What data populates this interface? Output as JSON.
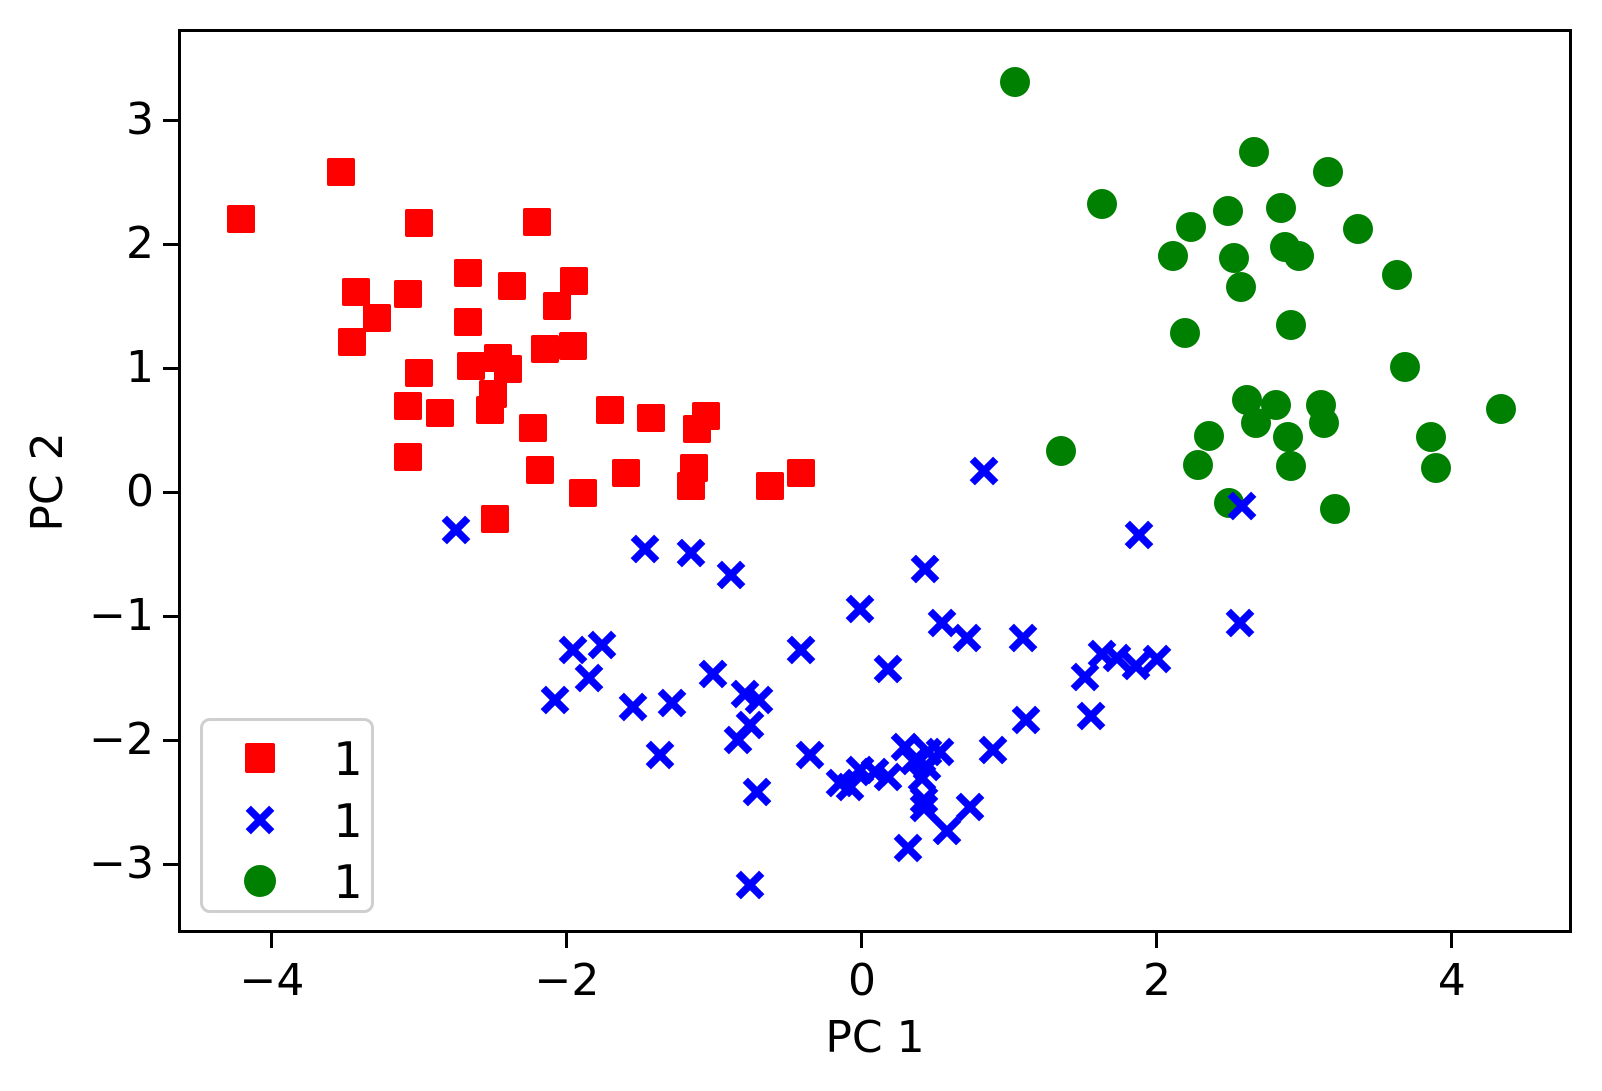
{
  "chart_data": {
    "type": "scatter",
    "title": "",
    "xlabel": "PC 1",
    "ylabel": "PC 2",
    "xlim": [
      -4.637,
      4.814
    ],
    "ylim": [
      -3.556,
      3.734
    ],
    "grid": false,
    "axis_color": "#000000",
    "background": "#ffffff",
    "x_ticks": [
      {
        "v": -4,
        "label": "−4"
      },
      {
        "v": -2,
        "label": "−2"
      },
      {
        "v": 0,
        "label": "0"
      },
      {
        "v": 2,
        "label": "2"
      },
      {
        "v": 4,
        "label": "4"
      }
    ],
    "y_ticks": [
      {
        "v": 3,
        "label": "3"
      },
      {
        "v": 2,
        "label": "2"
      },
      {
        "v": 1,
        "label": "1"
      },
      {
        "v": 0,
        "label": "0"
      },
      {
        "v": -1,
        "label": "−1"
      },
      {
        "v": -2,
        "label": "−2"
      },
      {
        "v": -3,
        "label": "−3"
      }
    ],
    "legend": {
      "location": "lower left",
      "border_color": "#cfcfcf",
      "entries": [
        {
          "label": "1",
          "marker": "square",
          "color": "#ff0000"
        },
        {
          "label": "1",
          "marker": "x",
          "color": "#0000ff"
        },
        {
          "label": "1",
          "marker": "circle",
          "color": "#008000"
        }
      ]
    },
    "series": [
      {
        "name": "1",
        "marker": "square",
        "color": "#ff0000",
        "points": [
          [
            -4.21,
            2.2
          ],
          [
            -3.53,
            2.58
          ],
          [
            -3.0,
            2.17
          ],
          [
            -2.2,
            2.18
          ],
          [
            -2.67,
            1.77
          ],
          [
            -2.37,
            1.66
          ],
          [
            -1.95,
            1.7
          ],
          [
            -2.07,
            1.5
          ],
          [
            -3.43,
            1.61
          ],
          [
            -3.08,
            1.6
          ],
          [
            -3.29,
            1.4
          ],
          [
            -2.67,
            1.37
          ],
          [
            -3.46,
            1.21
          ],
          [
            -2.65,
            1.02
          ],
          [
            -2.47,
            1.08
          ],
          [
            -2.4,
            0.99
          ],
          [
            -2.15,
            1.15
          ],
          [
            -1.96,
            1.18
          ],
          [
            -3.0,
            0.96
          ],
          [
            -3.08,
            0.69
          ],
          [
            -2.86,
            0.64
          ],
          [
            -2.5,
            0.79
          ],
          [
            -2.52,
            0.66
          ],
          [
            -2.23,
            0.52
          ],
          [
            -1.71,
            0.66
          ],
          [
            -1.43,
            0.6
          ],
          [
            -3.08,
            0.28
          ],
          [
            -2.18,
            0.18
          ],
          [
            -1.89,
            -0.01
          ],
          [
            -1.6,
            0.15
          ],
          [
            -2.49,
            -0.22
          ],
          [
            -1.06,
            0.61
          ],
          [
            -1.12,
            0.51
          ],
          [
            -1.14,
            0.19
          ],
          [
            -1.16,
            0.05
          ],
          [
            -0.62,
            0.05
          ],
          [
            -0.41,
            0.15
          ]
        ]
      },
      {
        "name": "1",
        "marker": "circle",
        "color": "#008000",
        "points": [
          [
            1.04,
            3.31
          ],
          [
            2.66,
            2.74
          ],
          [
            3.16,
            2.58
          ],
          [
            1.63,
            2.32
          ],
          [
            2.48,
            2.27
          ],
          [
            2.84,
            2.29
          ],
          [
            2.23,
            2.14
          ],
          [
            3.36,
            2.12
          ],
          [
            2.11,
            1.9
          ],
          [
            2.52,
            1.89
          ],
          [
            2.87,
            1.98
          ],
          [
            2.96,
            1.9
          ],
          [
            3.63,
            1.75
          ],
          [
            2.57,
            1.65
          ],
          [
            2.19,
            1.28
          ],
          [
            2.91,
            1.35
          ],
          [
            3.68,
            1.01
          ],
          [
            2.61,
            0.74
          ],
          [
            2.67,
            0.56
          ],
          [
            2.81,
            0.7
          ],
          [
            2.89,
            0.44
          ],
          [
            3.11,
            0.7
          ],
          [
            3.13,
            0.56
          ],
          [
            4.33,
            0.67
          ],
          [
            2.35,
            0.45
          ],
          [
            3.86,
            0.44
          ],
          [
            1.35,
            0.33
          ],
          [
            2.28,
            0.22
          ],
          [
            2.91,
            0.21
          ],
          [
            3.89,
            0.19
          ],
          [
            2.49,
            -0.09
          ],
          [
            3.21,
            -0.14
          ]
        ]
      },
      {
        "name": "1",
        "marker": "x",
        "color": "#0000ff",
        "points": [
          [
            0.83,
            0.17
          ],
          [
            -2.75,
            -0.31
          ],
          [
            -1.47,
            -0.46
          ],
          [
            -1.16,
            -0.49
          ],
          [
            -0.89,
            -0.67
          ],
          [
            0.43,
            -0.62
          ],
          [
            -0.01,
            -0.94
          ],
          [
            0.54,
            -1.06
          ],
          [
            0.71,
            -1.18
          ],
          [
            1.09,
            -1.18
          ],
          [
            -0.41,
            -1.27
          ],
          [
            0.18,
            -1.43
          ],
          [
            -1.01,
            -1.47
          ],
          [
            -1.96,
            -1.27
          ],
          [
            -1.76,
            -1.23
          ],
          [
            -1.85,
            -1.5
          ],
          [
            -2.08,
            -1.68
          ],
          [
            -1.55,
            -1.73
          ],
          [
            -1.29,
            -1.7
          ],
          [
            -0.79,
            -1.63
          ],
          [
            -0.7,
            -1.68
          ],
          [
            -0.84,
            -2.0
          ],
          [
            -0.76,
            -1.88
          ],
          [
            -1.37,
            -2.12
          ],
          [
            -0.35,
            -2.12
          ],
          [
            -0.15,
            -2.35
          ],
          [
            -0.71,
            -2.42
          ],
          [
            1.51,
            -1.49
          ],
          [
            1.63,
            -1.31
          ],
          [
            1.73,
            -1.34
          ],
          [
            1.86,
            -1.4
          ],
          [
            2.0,
            -1.35
          ],
          [
            1.55,
            -1.81
          ],
          [
            1.88,
            -0.35
          ],
          [
            2.56,
            -1.06
          ],
          [
            2.58,
            -0.11
          ],
          [
            0.29,
            -2.06
          ],
          [
            0.45,
            -2.1
          ],
          [
            0.53,
            -2.1
          ],
          [
            0.44,
            -2.22
          ],
          [
            0.35,
            -2.17
          ],
          [
            -0.01,
            -2.24
          ],
          [
            0.09,
            -2.26
          ],
          [
            0.18,
            -2.3
          ],
          [
            -0.08,
            -2.38
          ],
          [
            0.41,
            -2.31
          ],
          [
            0.42,
            -2.48
          ],
          [
            0.42,
            -2.55
          ],
          [
            0.58,
            -2.73
          ],
          [
            0.73,
            -2.54
          ],
          [
            0.31,
            -2.87
          ],
          [
            1.11,
            -1.84
          ],
          [
            0.89,
            -2.08
          ],
          [
            -0.76,
            -3.17
          ]
        ]
      }
    ]
  }
}
